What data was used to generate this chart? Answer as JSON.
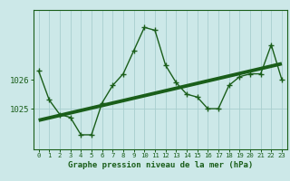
{
  "x": [
    0,
    1,
    2,
    3,
    4,
    5,
    6,
    7,
    8,
    9,
    10,
    11,
    12,
    13,
    14,
    15,
    16,
    17,
    18,
    19,
    20,
    21,
    22,
    23
  ],
  "y": [
    1026.3,
    1025.3,
    1024.8,
    1024.7,
    1024.1,
    1024.1,
    1025.2,
    1025.8,
    1026.2,
    1027.0,
    1027.8,
    1027.7,
    1026.5,
    1025.9,
    1025.5,
    1025.4,
    1025.0,
    1025.0,
    1025.8,
    1026.1,
    1026.2,
    1026.2,
    1027.2,
    1026.0
  ],
  "trend_x": [
    0,
    23
  ],
  "trend_y": [
    1024.6,
    1026.55
  ],
  "background_color": "#cce8e8",
  "line_color": "#1a5e1a",
  "trend_color": "#1a5e1a",
  "grid_color": "#a8cece",
  "tick_color": "#1a5e1a",
  "label_color": "#1a5e1a",
  "ylim": [
    1023.6,
    1028.4
  ],
  "xlim": [
    -0.5,
    23.5
  ],
  "xlabel": "Graphe pression niveau de la mer (hPa)",
  "xtick_labels": [
    "0",
    "1",
    "2",
    "3",
    "4",
    "5",
    "6",
    "7",
    "8",
    "9",
    "10",
    "11",
    "12",
    "13",
    "14",
    "15",
    "16",
    "17",
    "18",
    "19",
    "20",
    "21",
    "22",
    "23"
  ]
}
